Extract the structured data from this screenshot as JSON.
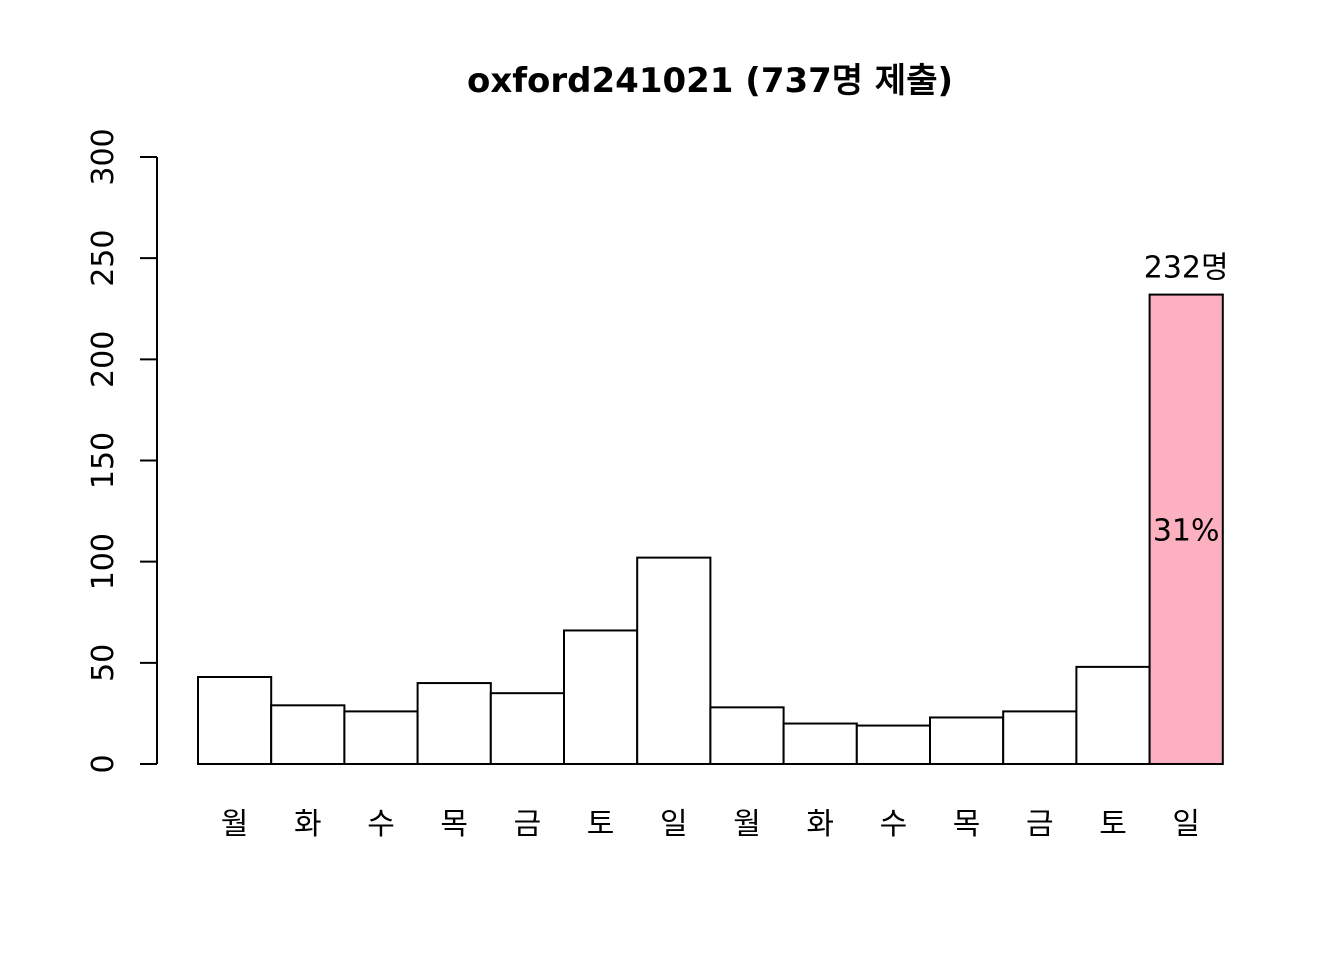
{
  "chart_data": {
    "type": "bar",
    "title": "oxford241021 (737명 제출)",
    "xlabel": "",
    "ylabel": "",
    "ylim": [
      0,
      300
    ],
    "yticks": [
      0,
      50,
      100,
      150,
      200,
      250,
      300
    ],
    "categories": [
      "월",
      "화",
      "수",
      "목",
      "금",
      "토",
      "일",
      "월",
      "화",
      "수",
      "목",
      "금",
      "토",
      "일"
    ],
    "values": [
      43,
      29,
      26,
      40,
      35,
      66,
      102,
      28,
      20,
      19,
      23,
      26,
      48,
      232
    ],
    "bar_color": "#ffffff",
    "highlight_color": "#fdb0c0",
    "highlight_index": 13,
    "highlight_value_label": "232명",
    "highlight_percent_label": "31%",
    "grid": false
  }
}
